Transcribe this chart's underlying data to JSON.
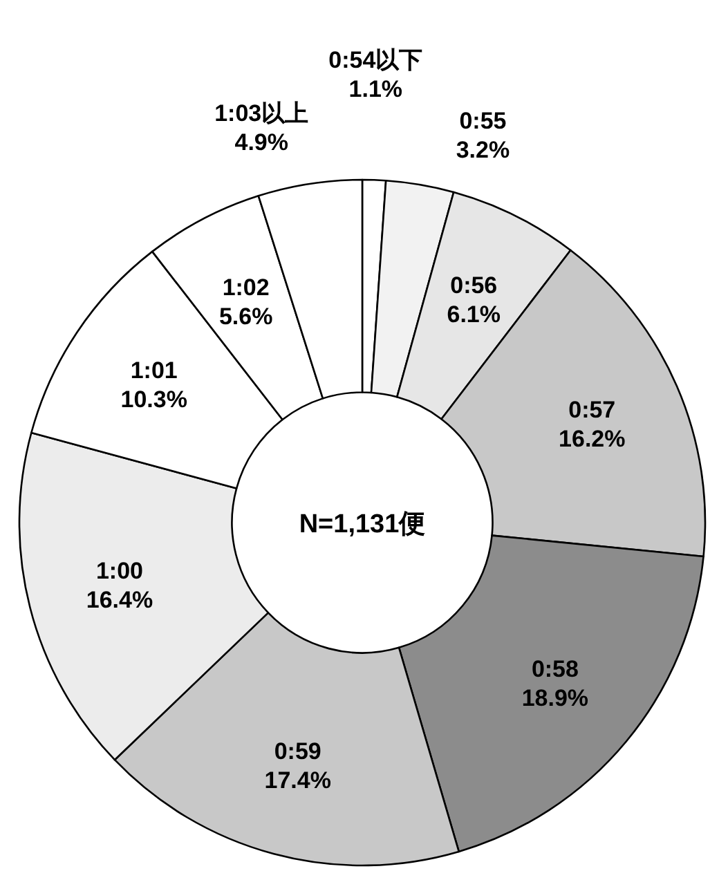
{
  "chart_data": {
    "type": "donut",
    "categories": [
      "0:54以下",
      "0:55",
      "0:56",
      "0:57",
      "0:58",
      "0:59",
      "1:00",
      "1:01",
      "1:02",
      "1:03以上"
    ],
    "values": [
      1.1,
      3.2,
      6.1,
      16.2,
      18.9,
      17.4,
      16.4,
      10.3,
      5.6,
      4.9
    ],
    "colors": [
      "#ffffff",
      "#f2f2f2",
      "#e6e6e6",
      "#c8c8c8",
      "#8c8c8c",
      "#c8c8c8",
      "#ececec",
      "#ffffff",
      "#ffffff",
      "#ffffff"
    ],
    "value_labels": [
      "1.1%",
      "3.2%",
      "6.1%",
      "16.2%",
      "18.9%",
      "17.4%",
      "16.4%",
      "10.3%",
      "5.6%",
      "4.9%"
    ],
    "annotations": [
      "N=1,131便"
    ]
  }
}
